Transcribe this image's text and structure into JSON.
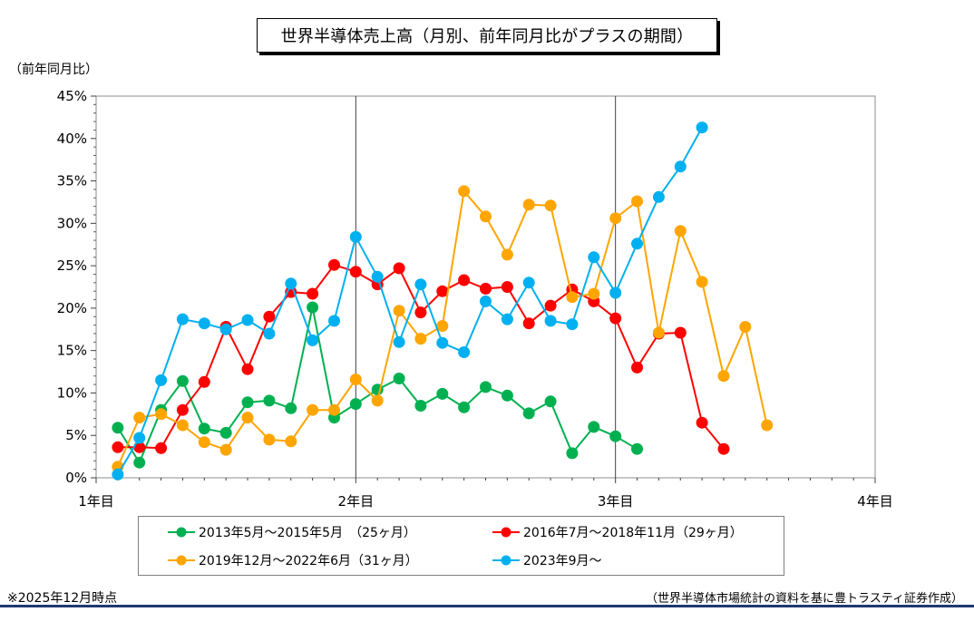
{
  "chart_data": {
    "type": "line",
    "title": "世界半導体売上高（月別、前年同月比がプラスの期間）",
    "ylabel": "（前年同月比）",
    "xlabel": "",
    "ylim": [
      0,
      45
    ],
    "yticks": [
      0,
      5,
      10,
      15,
      20,
      25,
      30,
      35,
      40,
      45
    ],
    "ytick_labels": [
      "0%",
      "5%",
      "10%",
      "15%",
      "20%",
      "25%",
      "30%",
      "35%",
      "40%",
      "45%"
    ],
    "xlim": [
      1,
      4
    ],
    "xticks": [
      1,
      2,
      3,
      4
    ],
    "xtick_labels": [
      "1年目",
      "2年目",
      "3年目",
      "4年目"
    ],
    "x_unit": "month index (1 = start of 1年目, 12 months per year)",
    "series": [
      {
        "name": "2013年5月～2015年5月　（25ヶ月）",
        "color": "#00b050",
        "values": [
          5.9,
          1.8,
          8.0,
          11.4,
          5.8,
          5.3,
          8.9,
          9.1,
          8.2,
          20.1,
          7.1,
          8.7,
          10.4,
          11.7,
          8.5,
          9.9,
          8.3,
          10.7,
          9.7,
          7.6,
          9.0,
          2.9,
          6.0,
          4.9,
          3.4
        ]
      },
      {
        "name": "2016年7月～2018年11月（29ヶ月）",
        "color": "#ff0000",
        "values": [
          3.6,
          3.6,
          3.5,
          8.0,
          11.3,
          17.8,
          12.8,
          19.0,
          21.9,
          21.7,
          25.1,
          24.3,
          22.8,
          24.7,
          19.5,
          22.0,
          23.3,
          22.3,
          22.5,
          18.2,
          20.3,
          22.2,
          20.8,
          18.8,
          13.0,
          17.0,
          17.1,
          6.5,
          3.4
        ]
      },
      {
        "name": "2019年12月～2022年6月（31ヶ月）",
        "color": "#ffa500",
        "values": [
          1.3,
          7.1,
          7.5,
          6.2,
          4.2,
          3.3,
          7.1,
          4.5,
          4.3,
          8.0,
          8.0,
          11.6,
          9.1,
          19.7,
          16.4,
          17.9,
          33.8,
          30.8,
          26.3,
          32.2,
          32.1,
          21.3,
          21.7,
          30.6,
          32.6,
          17.1,
          29.1,
          23.1,
          12.0,
          17.8,
          6.2
        ]
      },
      {
        "name": "2023年9月～",
        "color": "#00b0f0",
        "values": [
          0.4,
          4.7,
          11.5,
          18.7,
          18.2,
          17.5,
          18.6,
          17.0,
          22.9,
          16.2,
          18.5,
          28.4,
          23.7,
          16.0,
          22.8,
          15.9,
          14.8,
          20.8,
          18.7,
          23.0,
          18.5,
          18.1,
          26.0,
          21.8,
          27.6,
          33.1,
          36.7,
          41.3
        ]
      }
    ]
  },
  "note": "※2025年12月時点",
  "source": "（世界半導体市場統計の資料を基に豊トラスティ証券作成）"
}
